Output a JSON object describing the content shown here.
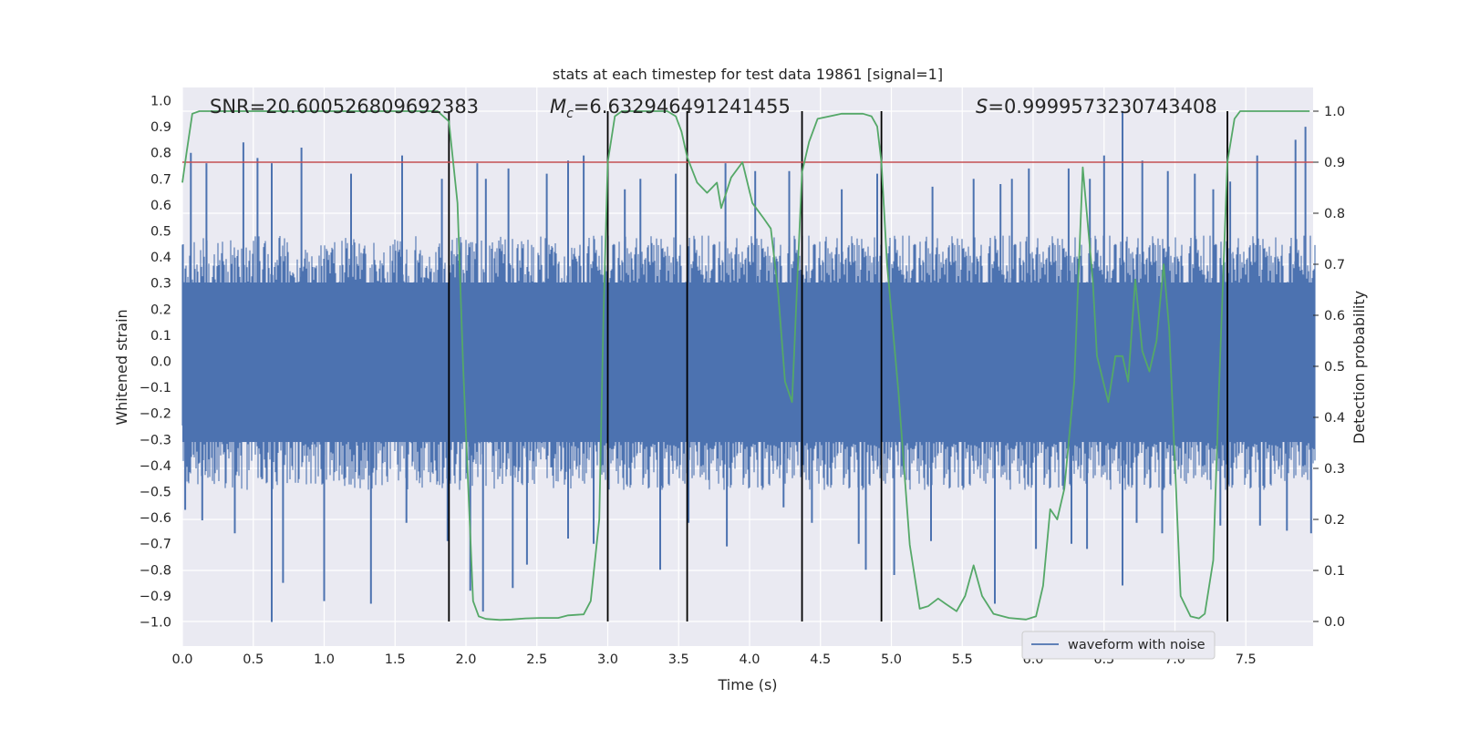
{
  "chart_data": {
    "type": "line",
    "title": "stats at each timestep for test data 19861 [signal=1]",
    "xlabel": "Time (s)",
    "ylabel": "Whitened strain",
    "y2label": "Detection probability",
    "xlim": [
      0.0,
      8.0
    ],
    "ylim": [
      -1.1,
      1.05
    ],
    "y2lim": [
      -0.05,
      1.05
    ],
    "x_ticks": [
      "0.0",
      "0.5",
      "1.0",
      "1.5",
      "2.0",
      "2.5",
      "3.0",
      "3.5",
      "4.0",
      "4.5",
      "5.0",
      "5.5",
      "6.0",
      "6.5",
      "7.0",
      "7.5"
    ],
    "y_ticks": [
      "1.0",
      "0.9",
      "0.8",
      "0.7",
      "0.6",
      "0.5",
      "0.4",
      "0.3",
      "0.2",
      "0.1",
      "0.0",
      "−0.1",
      "−0.2",
      "−0.3",
      "−0.4",
      "−0.5",
      "−0.6",
      "−0.7",
      "−0.8",
      "−0.9",
      "−1.0"
    ],
    "y2_ticks": [
      "1.0",
      "0.9",
      "0.8",
      "0.7",
      "0.6",
      "0.5",
      "0.4",
      "0.3",
      "0.2",
      "0.1",
      "0.0"
    ],
    "grid": true,
    "legend": {
      "position": "lower-right",
      "entries": [
        "waveform with noise"
      ]
    },
    "annotations": {
      "snr": "SNR=20.600526809692383",
      "mc_symbol": "M",
      "mc_sub": "c",
      "mc_value": "=6.632946491241455",
      "s_symbol": "S",
      "s_value": "=0.9999573230743408"
    },
    "threshold": 0.9,
    "vertical_lines": [
      1.88,
      3.0,
      3.56,
      4.37,
      4.93,
      7.37
    ],
    "series": [
      {
        "name": "waveform with noise",
        "kind": "strain",
        "color": "#4c72b0",
        "band_upper": 0.42,
        "band_lower": -0.43,
        "peaks_pos": [
          [
            0.06,
            0.8
          ],
          [
            0.17,
            0.76
          ],
          [
            0.43,
            0.84
          ],
          [
            0.53,
            0.78
          ],
          [
            0.63,
            0.76
          ],
          [
            0.84,
            0.82
          ],
          [
            1.19,
            0.72
          ],
          [
            1.55,
            0.79
          ],
          [
            1.83,
            0.7
          ],
          [
            2.08,
            0.76
          ],
          [
            2.14,
            0.7
          ],
          [
            2.3,
            0.74
          ],
          [
            2.57,
            0.72
          ],
          [
            2.72,
            0.77
          ],
          [
            2.83,
            0.79
          ],
          [
            3.12,
            0.66
          ],
          [
            3.23,
            0.7
          ],
          [
            3.48,
            0.72
          ],
          [
            3.83,
            0.76
          ],
          [
            4.04,
            0.73
          ],
          [
            4.28,
            0.73
          ],
          [
            4.65,
            0.66
          ],
          [
            4.9,
            0.72
          ],
          [
            5.29,
            0.67
          ],
          [
            5.58,
            0.7
          ],
          [
            5.77,
            0.68
          ],
          [
            5.85,
            0.7
          ],
          [
            5.97,
            0.74
          ],
          [
            6.25,
            0.74
          ],
          [
            6.4,
            0.7
          ],
          [
            6.5,
            0.79
          ],
          [
            6.63,
            0.96
          ],
          [
            6.77,
            0.77
          ],
          [
            6.95,
            0.73
          ],
          [
            7.14,
            0.72
          ],
          [
            7.27,
            0.66
          ],
          [
            7.39,
            0.69
          ],
          [
            7.58,
            0.79
          ],
          [
            7.85,
            0.85
          ],
          [
            7.92,
            0.9
          ]
        ],
        "peaks_neg": [
          [
            0.02,
            -0.57
          ],
          [
            0.14,
            -0.61
          ],
          [
            0.37,
            -0.66
          ],
          [
            0.63,
            -1.0
          ],
          [
            0.71,
            -0.85
          ],
          [
            1.0,
            -0.92
          ],
          [
            1.33,
            -0.93
          ],
          [
            1.58,
            -0.62
          ],
          [
            1.87,
            -0.69
          ],
          [
            2.03,
            -0.88
          ],
          [
            2.12,
            -0.96
          ],
          [
            2.33,
            -0.87
          ],
          [
            2.43,
            -0.78
          ],
          [
            2.72,
            -0.68
          ],
          [
            2.9,
            -0.7
          ],
          [
            3.37,
            -0.8
          ],
          [
            3.57,
            -0.62
          ],
          [
            3.84,
            -0.71
          ],
          [
            4.24,
            -0.56
          ],
          [
            4.44,
            -0.62
          ],
          [
            4.77,
            -0.7
          ],
          [
            4.82,
            -0.8
          ],
          [
            5.02,
            -0.82
          ],
          [
            5.28,
            -0.69
          ],
          [
            5.73,
            -0.93
          ],
          [
            6.02,
            -0.72
          ],
          [
            6.27,
            -0.7
          ],
          [
            6.38,
            -0.72
          ],
          [
            6.63,
            -0.86
          ],
          [
            6.73,
            -0.62
          ],
          [
            6.91,
            -0.66
          ],
          [
            7.32,
            -0.63
          ],
          [
            7.6,
            -0.63
          ],
          [
            7.79,
            -0.65
          ],
          [
            7.96,
            -0.66
          ]
        ]
      },
      {
        "name": "",
        "kind": "detection_probability",
        "color": "#55a868",
        "x": [
          0.0,
          0.03,
          0.07,
          0.12,
          0.3,
          0.5,
          0.8,
          1.0,
          1.2,
          1.5,
          1.7,
          1.8,
          1.88,
          1.94,
          1.98,
          2.05,
          2.09,
          2.14,
          2.24,
          2.32,
          2.42,
          2.52,
          2.65,
          2.72,
          2.83,
          2.88,
          2.94,
          2.97,
          3.0,
          3.05,
          3.1,
          3.2,
          3.3,
          3.42,
          3.48,
          3.52,
          3.56,
          3.63,
          3.7,
          3.77,
          3.8,
          3.87,
          3.95,
          4.02,
          4.1,
          4.15,
          4.2,
          4.25,
          4.3,
          4.37,
          4.42,
          4.48,
          4.65,
          4.8,
          4.86,
          4.9,
          4.93,
          4.97,
          5.05,
          5.13,
          5.2,
          5.26,
          5.33,
          5.38,
          5.46,
          5.52,
          5.58,
          5.64,
          5.72,
          5.83,
          5.95,
          6.02,
          6.07,
          6.12,
          6.17,
          6.22,
          6.29,
          6.35,
          6.42,
          6.45,
          6.53,
          6.58,
          6.63,
          6.67,
          6.72,
          6.77,
          6.82,
          6.87,
          6.92,
          6.96,
          7.04,
          7.11,
          7.17,
          7.21,
          7.27,
          7.31,
          7.37,
          7.42,
          7.46,
          7.6,
          7.95
        ],
        "y": [
          0.86,
          0.92,
          0.995,
          1.0,
          1.0,
          1.0,
          1.0,
          1.0,
          1.0,
          1.0,
          1.0,
          1.0,
          0.98,
          0.82,
          0.5,
          0.04,
          0.01,
          0.005,
          0.003,
          0.004,
          0.006,
          0.007,
          0.007,
          0.012,
          0.014,
          0.04,
          0.2,
          0.6,
          0.9,
          0.99,
          1.0,
          1.0,
          1.0,
          1.0,
          0.99,
          0.96,
          0.91,
          0.86,
          0.84,
          0.86,
          0.81,
          0.87,
          0.9,
          0.82,
          0.79,
          0.77,
          0.65,
          0.47,
          0.43,
          0.88,
          0.94,
          0.985,
          0.995,
          0.995,
          0.99,
          0.97,
          0.9,
          0.7,
          0.45,
          0.15,
          0.025,
          0.03,
          0.045,
          0.035,
          0.02,
          0.05,
          0.11,
          0.05,
          0.015,
          0.007,
          0.004,
          0.01,
          0.07,
          0.22,
          0.2,
          0.26,
          0.47,
          0.89,
          0.67,
          0.52,
          0.43,
          0.52,
          0.52,
          0.47,
          0.67,
          0.53,
          0.49,
          0.55,
          0.7,
          0.57,
          0.05,
          0.01,
          0.006,
          0.015,
          0.12,
          0.45,
          0.9,
          0.985,
          1.0,
          1.0,
          1.0
        ]
      }
    ]
  },
  "colors": {
    "background": "#eaeaf2",
    "grid": "#ffffff",
    "strain": "#4c72b0",
    "probability": "#55a868",
    "threshold": "#c44e52",
    "vlines": "#000000"
  }
}
